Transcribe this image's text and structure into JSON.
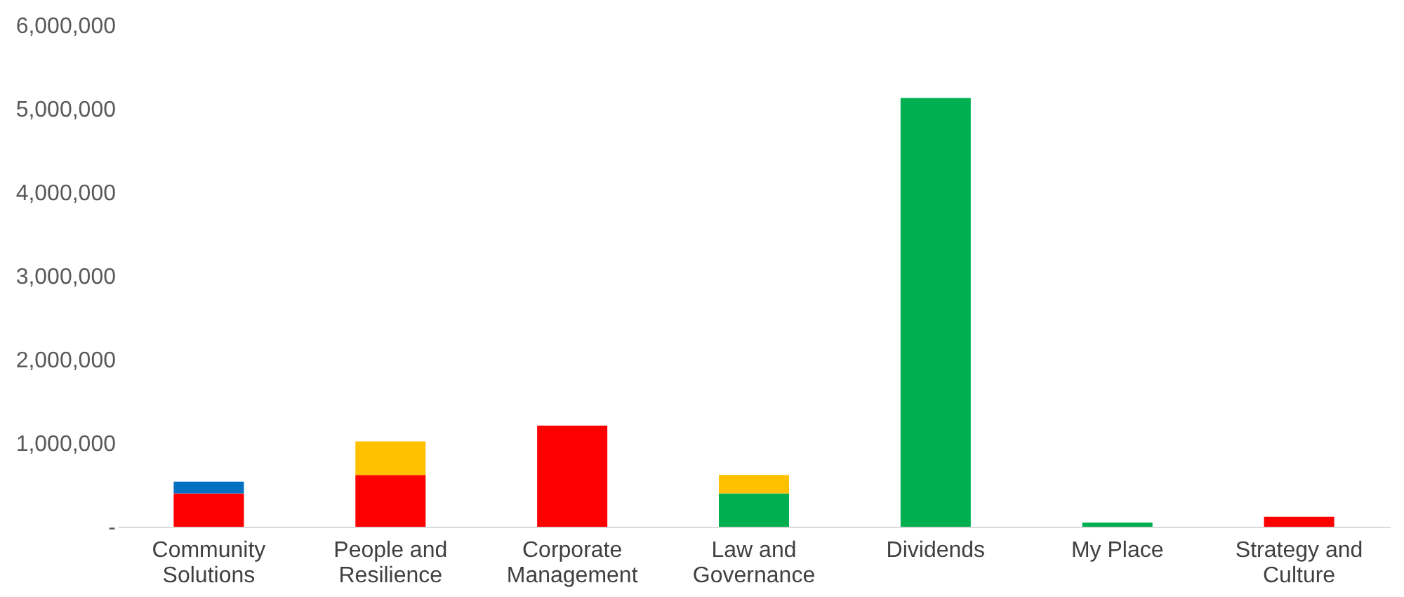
{
  "chart_data": {
    "type": "bar",
    "stacked": true,
    "categories": [
      "Community Solutions",
      "People and Resilience",
      "Corporate Management",
      "Law and Governance",
      "Dividends",
      "My Place",
      "Strategy and Culture"
    ],
    "series": [
      {
        "color": "#ff0000",
        "values": [
          400000,
          620000,
          1210000,
          null,
          null,
          null,
          120000
        ]
      },
      {
        "color": "#00b050",
        "values": [
          null,
          null,
          null,
          400000,
          5130000,
          50000,
          null
        ]
      },
      {
        "color": "#ffc000",
        "values": [
          null,
          400000,
          null,
          220000,
          null,
          null,
          null
        ]
      },
      {
        "color": "#0070c0",
        "values": [
          140000,
          null,
          null,
          null,
          null,
          null,
          null
        ]
      }
    ],
    "ylim": [
      0,
      6000000
    ],
    "yticks": [
      {
        "value": 0,
        "label": "-"
      },
      {
        "value": 1000000,
        "label": "1,000,000"
      },
      {
        "value": 2000000,
        "label": "2,000,000"
      },
      {
        "value": 3000000,
        "label": "3,000,000"
      },
      {
        "value": 4000000,
        "label": "4,000,000"
      },
      {
        "value": 5000000,
        "label": "5,000,000"
      },
      {
        "value": 6000000,
        "label": "6,000,000"
      }
    ],
    "grid": false,
    "legend": false
  }
}
